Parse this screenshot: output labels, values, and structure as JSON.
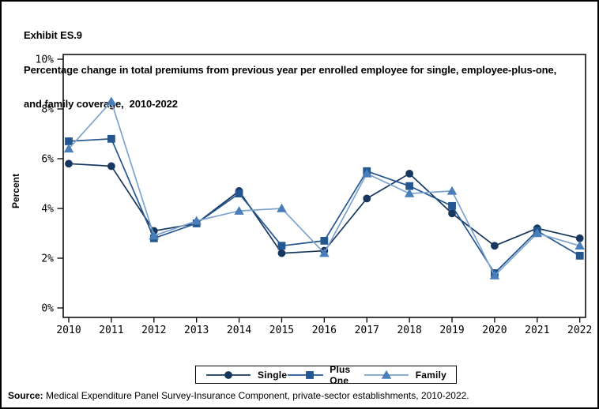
{
  "title": {
    "exhibit": "Exhibit ES.9",
    "line1": "Percentage change in total premiums from previous year per enrolled employee for single, employee-plus-one,",
    "line2": "and family coverage,  2010-2022"
  },
  "source": {
    "label": "Source:",
    "text": " Medical Expenditure Panel Survey-Insurance Component, private-sector establishments, 2010-2022."
  },
  "chart_data": {
    "type": "line",
    "x": [
      2010,
      2011,
      2012,
      2013,
      2014,
      2015,
      2016,
      2017,
      2018,
      2019,
      2020,
      2021,
      2022
    ],
    "series": [
      {
        "name": "Single",
        "marker": "circle",
        "line_color": "#17375E",
        "marker_color": "#17375E",
        "values": [
          5.8,
          5.7,
          3.1,
          3.4,
          4.7,
          2.2,
          2.3,
          4.4,
          5.4,
          3.8,
          2.5,
          3.2,
          2.8
        ]
      },
      {
        "name": "Plus One",
        "marker": "square",
        "line_color": "#24568F",
        "marker_color": "#24568F",
        "values": [
          6.7,
          6.8,
          2.8,
          3.4,
          4.6,
          2.5,
          2.7,
          5.5,
          4.9,
          4.1,
          1.4,
          3.1,
          2.1
        ]
      },
      {
        "name": "Family",
        "marker": "triangle",
        "line_color": "#7DA3CD",
        "marker_color": "#4A7EBB",
        "values": [
          6.4,
          8.3,
          2.9,
          3.5,
          3.9,
          4.0,
          2.2,
          5.4,
          4.6,
          4.7,
          1.3,
          3.0,
          2.5
        ]
      }
    ],
    "ylabel": "Percent",
    "xlabel": "",
    "ylim": [
      0,
      10
    ],
    "yticks": [
      0,
      2,
      4,
      6,
      8,
      10
    ],
    "ytick_suffix": "%",
    "legend_position": "bottom",
    "grid": false
  }
}
